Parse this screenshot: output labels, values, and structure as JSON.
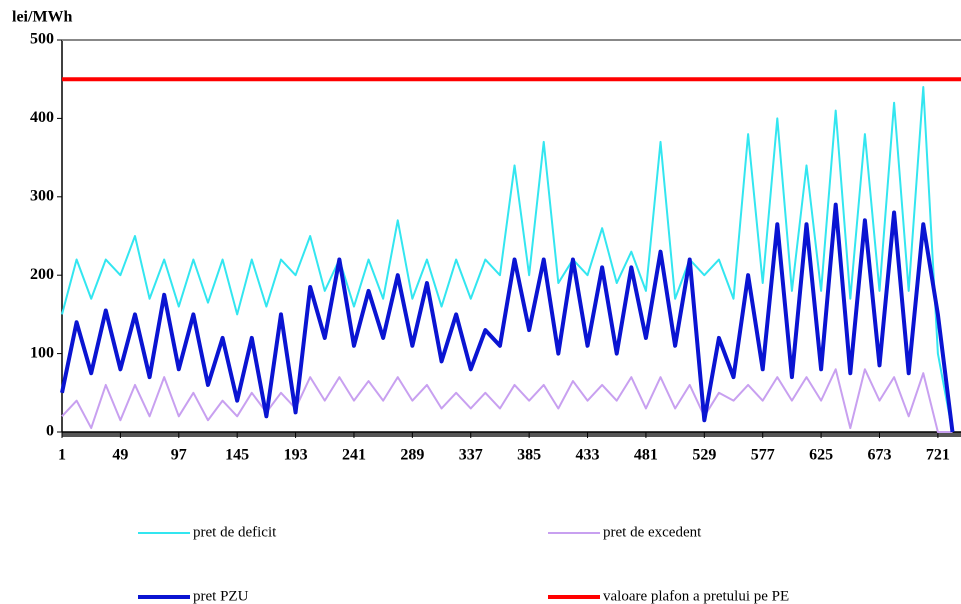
{
  "chart_data": {
    "type": "line",
    "y_label": "lei/MWh",
    "x": [
      1,
      13,
      25,
      37,
      49,
      61,
      73,
      85,
      97,
      109,
      121,
      133,
      145,
      157,
      169,
      181,
      193,
      205,
      217,
      229,
      241,
      253,
      265,
      277,
      289,
      301,
      313,
      325,
      337,
      349,
      361,
      373,
      385,
      397,
      409,
      421,
      433,
      445,
      457,
      469,
      481,
      493,
      505,
      517,
      529,
      541,
      553,
      565,
      577,
      589,
      601,
      613,
      625,
      637,
      649,
      661,
      673,
      685,
      697,
      709,
      721,
      733
    ],
    "xlim": [
      1,
      740
    ],
    "xticks": [
      1,
      49,
      97,
      145,
      193,
      241,
      289,
      337,
      385,
      433,
      481,
      529,
      577,
      625,
      673,
      721
    ],
    "ylim": [
      0,
      500
    ],
    "yticks": [
      0,
      100,
      200,
      300,
      400,
      500
    ],
    "series": [
      {
        "name": "pret de deficit",
        "color": "#33e6f0",
        "width": 2,
        "values": [
          150,
          220,
          170,
          220,
          200,
          250,
          170,
          220,
          160,
          220,
          165,
          220,
          150,
          220,
          160,
          220,
          200,
          250,
          180,
          220,
          160,
          220,
          170,
          270,
          170,
          220,
          160,
          220,
          170,
          220,
          200,
          340,
          200,
          370,
          190,
          220,
          200,
          260,
          190,
          230,
          180,
          370,
          170,
          220,
          200,
          220,
          170,
          380,
          190,
          400,
          180,
          340,
          180,
          410,
          170,
          380,
          180,
          420,
          180,
          440,
          100,
          0
        ]
      },
      {
        "name": "pret de excedent",
        "color": "#c8a0f0",
        "width": 2,
        "values": [
          20,
          40,
          5,
          60,
          15,
          60,
          20,
          70,
          20,
          50,
          15,
          40,
          20,
          50,
          25,
          50,
          30,
          70,
          40,
          70,
          40,
          65,
          40,
          70,
          40,
          60,
          30,
          50,
          30,
          50,
          30,
          60,
          40,
          60,
          30,
          65,
          40,
          60,
          40,
          70,
          30,
          70,
          30,
          60,
          20,
          50,
          40,
          60,
          40,
          70,
          40,
          70,
          40,
          80,
          5,
          80,
          40,
          70,
          20,
          75,
          0,
          0
        ]
      },
      {
        "name": "pret PZU",
        "color": "#0a14d2",
        "width": 4,
        "values": [
          50,
          140,
          75,
          155,
          80,
          150,
          70,
          175,
          80,
          150,
          60,
          120,
          40,
          120,
          20,
          150,
          25,
          185,
          120,
          220,
          110,
          180,
          120,
          200,
          110,
          190,
          90,
          150,
          80,
          130,
          110,
          220,
          130,
          220,
          100,
          220,
          110,
          210,
          100,
          210,
          120,
          230,
          110,
          220,
          15,
          120,
          70,
          200,
          80,
          265,
          70,
          265,
          80,
          290,
          75,
          270,
          85,
          280,
          75,
          265,
          150,
          0
        ]
      },
      {
        "name": "valoare plafon a pretului pe PE",
        "color": "#ff0000",
        "width": 4,
        "x": [
          1,
          740
        ],
        "values": [
          450,
          450
        ]
      }
    ]
  }
}
